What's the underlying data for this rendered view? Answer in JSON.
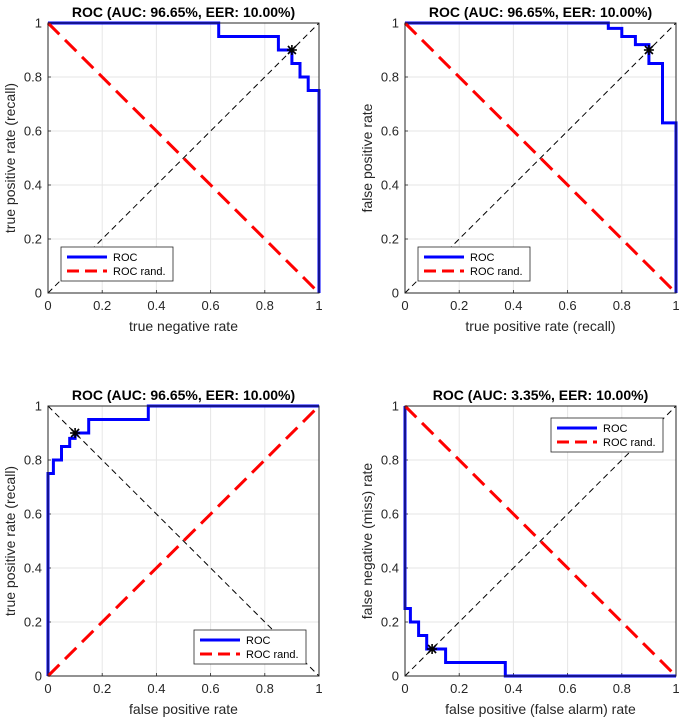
{
  "chart_data": [
    {
      "type": "line",
      "title": "ROC (AUC: 96.65%, EER: 10.00%)",
      "xlabel": "true negative rate",
      "ylabel": "true positive rate (recall)",
      "xlim": [
        0,
        1
      ],
      "ylim": [
        0,
        1
      ],
      "xticks": [
        "0",
        "0.2",
        "0.4",
        "0.6",
        "0.8",
        "1"
      ],
      "yticks": [
        "0",
        "0.2",
        "0.4",
        "0.6",
        "0.8",
        "1"
      ],
      "grid": true,
      "legend_position": "bottom-left",
      "series": [
        {
          "name": "ROC",
          "style": "solid",
          "color": "#0000ff",
          "x": [
            0,
            0.63,
            0.63,
            0.85,
            0.85,
            0.9,
            0.9,
            0.93,
            0.93,
            0.96,
            0.96,
            0.99,
            0.99,
            1.0,
            1.0
          ],
          "y": [
            1,
            1,
            0.95,
            0.95,
            0.9,
            0.9,
            0.85,
            0.85,
            0.8,
            0.8,
            0.75,
            0.75,
            0.75,
            0.75,
            0
          ]
        },
        {
          "name": "ROC rand.",
          "style": "dashed",
          "color": "#ff0000",
          "x": [
            0,
            1
          ],
          "y": [
            1,
            0
          ]
        }
      ],
      "reference_line": {
        "x": [
          0,
          1
        ],
        "y": [
          0,
          1
        ],
        "color": "#000000"
      },
      "eer_point": {
        "x": 0.9,
        "y": 0.9
      }
    },
    {
      "type": "line",
      "title": "ROC (AUC: 96.65%, EER: 10.00%)",
      "xlabel": "true positive rate (recall)",
      "ylabel": "false positive rate",
      "xlim": [
        0,
        1
      ],
      "ylim": [
        0,
        1
      ],
      "xticks": [
        "0",
        "0.2",
        "0.4",
        "0.6",
        "0.8",
        "1"
      ],
      "yticks": [
        "0",
        "0.2",
        "0.4",
        "0.6",
        "0.8",
        "1"
      ],
      "grid": true,
      "legend_position": "bottom-left",
      "series": [
        {
          "name": "ROC",
          "style": "solid",
          "color": "#0000ff",
          "x": [
            0,
            0.75,
            0.75,
            0.8,
            0.8,
            0.85,
            0.85,
            0.9,
            0.9,
            0.95,
            0.95,
            1.0,
            1.0
          ],
          "y": [
            1,
            1,
            0.98,
            0.98,
            0.95,
            0.95,
            0.92,
            0.92,
            0.85,
            0.85,
            0.63,
            0.63,
            0
          ]
        },
        {
          "name": "ROC rand.",
          "style": "dashed",
          "color": "#ff0000",
          "x": [
            0,
            1
          ],
          "y": [
            1,
            0
          ]
        }
      ],
      "reference_line": {
        "x": [
          0,
          1
        ],
        "y": [
          0,
          1
        ],
        "color": "#000000"
      },
      "eer_point": {
        "x": 0.9,
        "y": 0.9
      }
    },
    {
      "type": "line",
      "title": "ROC (AUC: 96.65%, EER: 10.00%)",
      "xlabel": "false positive rate",
      "ylabel": "true positive rate (recall)",
      "xlim": [
        0,
        1
      ],
      "ylim": [
        0,
        1
      ],
      "xticks": [
        "0",
        "0.2",
        "0.4",
        "0.6",
        "0.8",
        "1"
      ],
      "yticks": [
        "0",
        "0.2",
        "0.4",
        "0.6",
        "0.8",
        "1"
      ],
      "grid": true,
      "legend_position": "bottom-right",
      "series": [
        {
          "name": "ROC",
          "style": "solid",
          "color": "#0000ff",
          "x": [
            0,
            0,
            0.02,
            0.02,
            0.05,
            0.05,
            0.08,
            0.08,
            0.1,
            0.1,
            0.15,
            0.15,
            0.37,
            0.37,
            1.0
          ],
          "y": [
            0,
            0.75,
            0.75,
            0.8,
            0.8,
            0.85,
            0.85,
            0.88,
            0.88,
            0.9,
            0.9,
            0.95,
            0.95,
            1.0,
            1.0
          ]
        },
        {
          "name": "ROC rand.",
          "style": "dashed",
          "color": "#ff0000",
          "x": [
            0,
            1
          ],
          "y": [
            0,
            1
          ]
        }
      ],
      "reference_line": {
        "x": [
          0,
          1
        ],
        "y": [
          1,
          0
        ],
        "color": "#000000"
      },
      "eer_point": {
        "x": 0.1,
        "y": 0.9
      }
    },
    {
      "type": "line",
      "title": "ROC (AUC: 3.35%, EER: 10.00%)",
      "xlabel": "false positive (false alarm) rate",
      "ylabel": "false negative (miss) rate",
      "xlim": [
        0,
        1
      ],
      "ylim": [
        0,
        1
      ],
      "xticks": [
        "0",
        "0.2",
        "0.4",
        "0.6",
        "0.8",
        "1"
      ],
      "yticks": [
        "0",
        "0.2",
        "0.4",
        "0.6",
        "0.8",
        "1"
      ],
      "grid": true,
      "legend_position": "top-right",
      "series": [
        {
          "name": "ROC",
          "style": "solid",
          "color": "#0000ff",
          "x": [
            0,
            0,
            0.02,
            0.02,
            0.05,
            0.05,
            0.08,
            0.08,
            0.1,
            0.1,
            0.15,
            0.15,
            0.37,
            0.37,
            1.0
          ],
          "y": [
            1,
            0.25,
            0.25,
            0.2,
            0.2,
            0.15,
            0.15,
            0.1,
            0.1,
            0.1,
            0.1,
            0.05,
            0.05,
            0,
            0
          ]
        },
        {
          "name": "ROC rand.",
          "style": "dashed",
          "color": "#ff0000",
          "x": [
            0,
            1
          ],
          "y": [
            1,
            0
          ]
        }
      ],
      "reference_line": {
        "x": [
          0,
          1
        ],
        "y": [
          0,
          1
        ],
        "color": "#000000"
      },
      "eer_point": {
        "x": 0.1,
        "y": 0.1
      }
    }
  ]
}
